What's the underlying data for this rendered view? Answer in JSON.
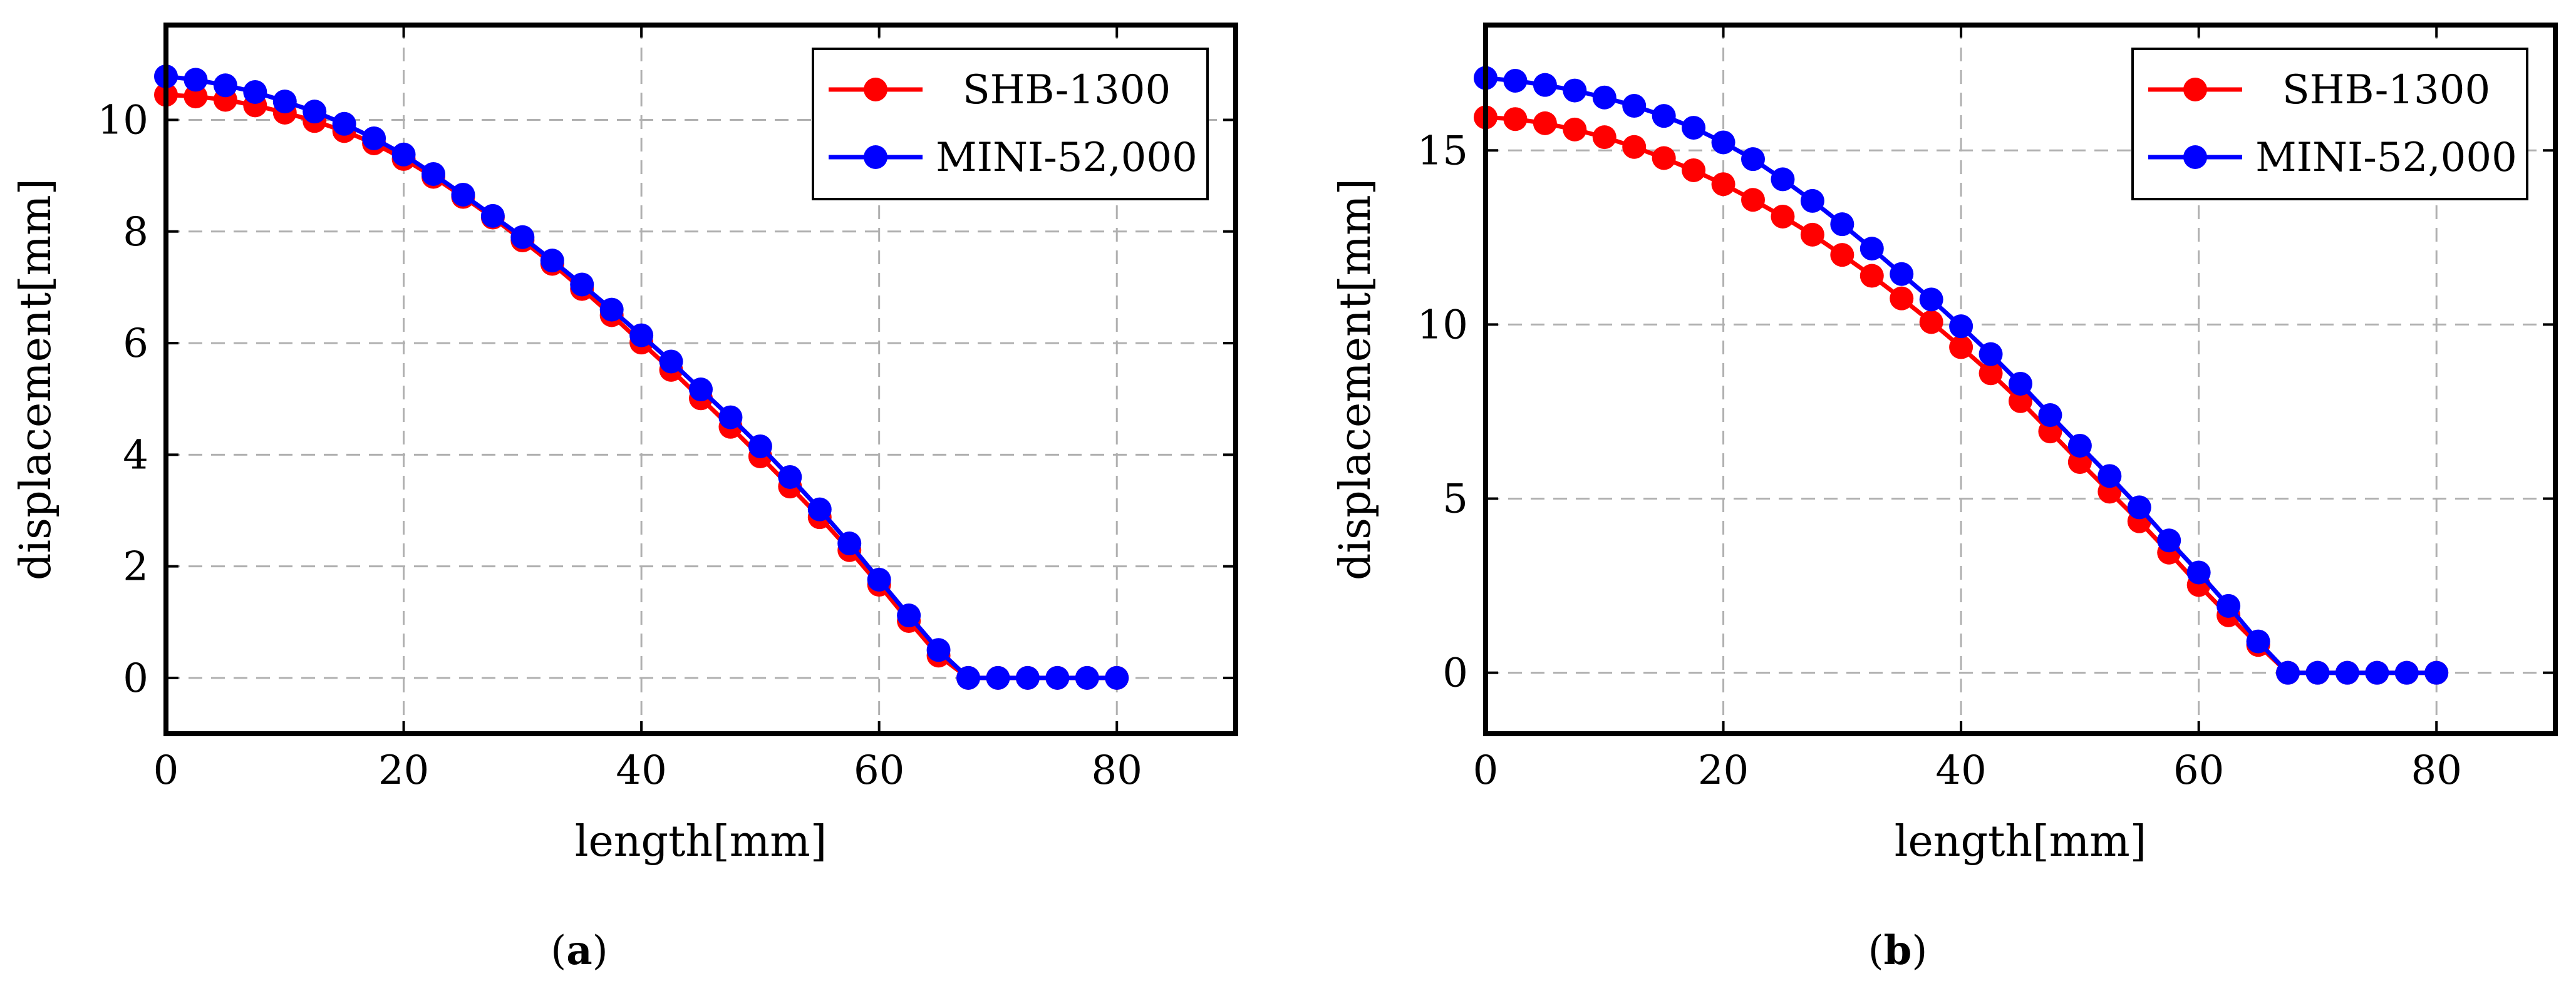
{
  "chart_data": [
    {
      "type": "line",
      "panel": "a",
      "caption": {
        "open": "(",
        "letter": "a",
        "close": ")"
      },
      "xlabel": "length[mm]",
      "ylabel": "displacement[mm]",
      "xlim": [
        0,
        90
      ],
      "ylim": [
        -1,
        11.7
      ],
      "xticks": [
        0,
        20,
        40,
        60,
        80
      ],
      "xtick_labels": [
        "0",
        "20",
        "40",
        "60",
        "80"
      ],
      "yticks": [
        0,
        2,
        4,
        6,
        8,
        10
      ],
      "ytick_labels": [
        "0",
        "2",
        "4",
        "6",
        "8",
        "10"
      ],
      "grid": true,
      "legend_position": "top-right",
      "series": [
        {
          "name": "SHB-1300",
          "color": "#ff0000",
          "x": [
            0,
            2.5,
            5,
            7.5,
            10,
            12.5,
            15,
            17.5,
            20,
            22.5,
            25,
            27.5,
            30,
            32.5,
            35,
            37.5,
            40,
            42.5,
            45,
            47.5,
            50,
            52.5,
            55,
            57.5,
            60,
            62.5,
            65,
            67.5,
            70,
            72.5,
            75,
            77.5,
            80
          ],
          "y": [
            10.45,
            10.42,
            10.36,
            10.26,
            10.13,
            9.98,
            9.8,
            9.58,
            9.3,
            8.98,
            8.62,
            8.25,
            7.84,
            7.42,
            6.97,
            6.5,
            6.01,
            5.52,
            5.01,
            4.5,
            3.97,
            3.43,
            2.88,
            2.29,
            1.67,
            1.02,
            0.4,
            0,
            0,
            0,
            0,
            0,
            0
          ]
        },
        {
          "name": "MINI-52,000",
          "color": "#0000ff",
          "x": [
            0,
            2.5,
            5,
            7.5,
            10,
            12.5,
            15,
            17.5,
            20,
            22.5,
            25,
            27.5,
            30,
            32.5,
            35,
            37.5,
            40,
            42.5,
            45,
            47.5,
            50,
            52.5,
            55,
            57.5,
            60,
            62.5,
            65,
            67.5,
            70,
            72.5,
            75,
            77.5,
            80
          ],
          "y": [
            10.78,
            10.72,
            10.62,
            10.5,
            10.33,
            10.15,
            9.93,
            9.67,
            9.38,
            9.03,
            8.66,
            8.28,
            7.9,
            7.48,
            7.05,
            6.6,
            6.14,
            5.67,
            5.17,
            4.67,
            4.15,
            3.6,
            3.02,
            2.41,
            1.76,
            1.12,
            0.5,
            0,
            0,
            0,
            0,
            0,
            0
          ]
        }
      ]
    },
    {
      "type": "line",
      "panel": "b",
      "caption": {
        "open": "(",
        "letter": "b",
        "close": ")"
      },
      "xlabel": "length[mm]",
      "ylabel": "displacement[mm]",
      "xlim": [
        0,
        90
      ],
      "ylim": [
        -1.75,
        18.6
      ],
      "xticks": [
        0,
        20,
        40,
        60,
        80
      ],
      "xtick_labels": [
        "0",
        "20",
        "40",
        "60",
        "80"
      ],
      "yticks": [
        0,
        5,
        10,
        15
      ],
      "ytick_labels": [
        "0",
        "5",
        "10",
        "15"
      ],
      "grid": true,
      "legend_position": "top-right",
      "series": [
        {
          "name": "SHB-1300",
          "color": "#ff0000",
          "x": [
            0,
            2.5,
            5,
            7.5,
            10,
            12.5,
            15,
            17.5,
            20,
            22.5,
            25,
            27.5,
            30,
            32.5,
            35,
            37.5,
            40,
            42.5,
            45,
            47.5,
            50,
            52.5,
            55,
            57.5,
            60,
            62.5,
            65,
            67.5,
            70,
            72.5,
            75,
            77.5,
            80
          ],
          "y": [
            15.95,
            15.9,
            15.78,
            15.6,
            15.38,
            15.1,
            14.78,
            14.43,
            14.03,
            13.58,
            13.1,
            12.58,
            12.0,
            11.4,
            10.75,
            10.07,
            9.35,
            8.6,
            7.8,
            6.93,
            6.05,
            5.2,
            4.35,
            3.45,
            2.52,
            1.65,
            0.8,
            0,
            0,
            0,
            0,
            0,
            0
          ]
        },
        {
          "name": "MINI-52,000",
          "color": "#0000ff",
          "x": [
            0,
            2.5,
            5,
            7.5,
            10,
            12.5,
            15,
            17.5,
            20,
            22.5,
            25,
            27.5,
            30,
            32.5,
            35,
            37.5,
            40,
            42.5,
            45,
            47.5,
            50,
            52.5,
            55,
            57.5,
            60,
            62.5,
            65,
            67.5,
            70,
            72.5,
            75,
            77.5,
            80
          ],
          "y": [
            17.08,
            17.0,
            16.88,
            16.72,
            16.52,
            16.28,
            15.99,
            15.65,
            15.23,
            14.75,
            14.17,
            13.55,
            12.88,
            12.18,
            11.45,
            10.72,
            9.95,
            9.15,
            8.3,
            7.4,
            6.52,
            5.65,
            4.75,
            3.8,
            2.88,
            1.92,
            0.9,
            0,
            0,
            0,
            0,
            0,
            0
          ]
        }
      ]
    }
  ]
}
